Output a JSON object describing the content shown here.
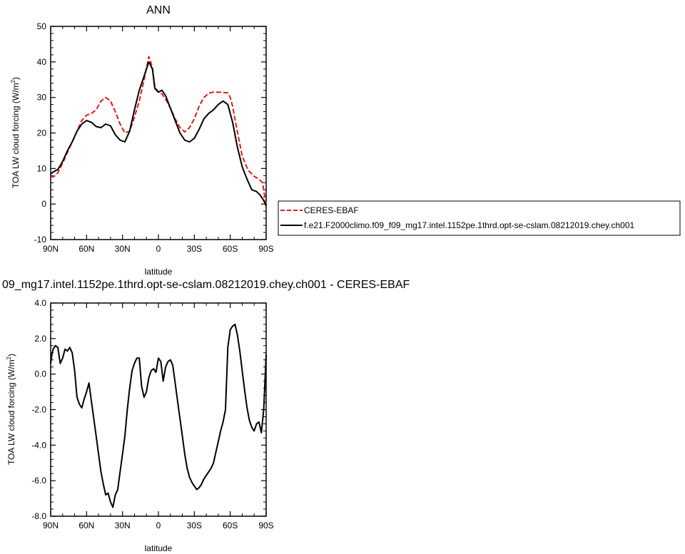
{
  "chart_data": [
    {
      "type": "line",
      "title": "ANN",
      "xlabel": "latitude",
      "ylabel": "TOA LW cloud forcing (W/m",
      "ylabel_sup": "2",
      "ylabel_close": ")",
      "xlim": [
        90,
        -90
      ],
      "ylim": [
        -10,
        50
      ],
      "xticks": [
        90,
        60,
        30,
        0,
        -30,
        -60,
        -90
      ],
      "xticklabels": [
        "90N",
        "60N",
        "30N",
        "0",
        "30S",
        "60S",
        "90S"
      ],
      "yticks": [
        -10,
        0,
        10,
        20,
        30,
        40,
        50
      ],
      "yticklabels": [
        "-10",
        "0",
        "10",
        "20",
        "30",
        "40",
        "50"
      ],
      "legend": "right",
      "series": [
        {
          "name": "CERES-EBAF",
          "color": "#e31a1c",
          "dash": "dashed",
          "x": [
            90,
            87,
            84,
            80,
            76,
            72,
            68,
            64,
            60,
            56,
            52,
            48,
            44,
            40,
            36,
            32,
            28,
            24,
            20,
            16,
            12,
            8,
            5,
            3,
            0,
            -3,
            -6,
            -10,
            -14,
            -18,
            -22,
            -26,
            -30,
            -34,
            -38,
            -42,
            -46,
            -50,
            -54,
            -58,
            -60,
            -62,
            -65,
            -70,
            -75,
            -80,
            -84,
            -87,
            -90
          ],
          "y": [
            7.5,
            7.8,
            8.8,
            11.5,
            14.5,
            17.5,
            20.5,
            23.5,
            25.0,
            25.5,
            26.5,
            29.0,
            30.0,
            29.0,
            26.0,
            22.5,
            20.0,
            20.5,
            24.5,
            29.0,
            35.0,
            41.5,
            38.5,
            33.0,
            31.5,
            31.0,
            29.5,
            27.0,
            24.0,
            21.5,
            20.3,
            21.5,
            24.0,
            27.5,
            30.0,
            31.2,
            31.5,
            31.5,
            31.4,
            31.3,
            30.0,
            27.5,
            22.0,
            13.5,
            9.5,
            7.8,
            7.0,
            6.0,
            -0.5
          ]
        },
        {
          "name": "f.e21.F2000climo.f09_f09_mg17.intel.1152pe.1thrd.opt-se-cslam.08212019.chey.ch001",
          "color": "#000000",
          "dash": "solid",
          "x": [
            90,
            87,
            84,
            80,
            76,
            72,
            68,
            64,
            60,
            56,
            52,
            48,
            44,
            40,
            36,
            32,
            28,
            24,
            20,
            16,
            12,
            8,
            5,
            3,
            0,
            -3,
            -6,
            -10,
            -14,
            -18,
            -22,
            -26,
            -30,
            -34,
            -38,
            -42,
            -46,
            -50,
            -54,
            -58,
            -62,
            -66,
            -70,
            -74,
            -78,
            -82,
            -85,
            -87,
            -89,
            -90
          ],
          "y": [
            8.5,
            9.2,
            9.7,
            12.0,
            15.0,
            17.5,
            20.5,
            22.5,
            23.5,
            23.0,
            21.8,
            21.5,
            22.5,
            22.0,
            19.5,
            18.0,
            17.5,
            20.5,
            26.5,
            32.0,
            36.0,
            40.0,
            38.0,
            32.5,
            31.5,
            32.0,
            30.5,
            27.0,
            23.5,
            20.0,
            18.0,
            17.5,
            18.5,
            21.0,
            24.0,
            25.5,
            26.5,
            28.0,
            29.0,
            28.0,
            23.0,
            16.0,
            10.5,
            7.0,
            4.0,
            3.5,
            2.5,
            1.5,
            0.3,
            -0.5
          ]
        }
      ]
    },
    {
      "type": "line",
      "title": "09_mg17.intel.1152pe.1thrd.opt-se-cslam.08212019.chey.ch001 - CERES-EBAF",
      "xlabel": "latitude",
      "ylabel": "TOA LW cloud forcing (W/m",
      "ylabel_sup": "2",
      "ylabel_close": ")",
      "xlim": [
        90,
        -90
      ],
      "ylim": [
        -8,
        4
      ],
      "xticks": [
        90,
        60,
        30,
        0,
        -30,
        -60,
        -90
      ],
      "xticklabels": [
        "90N",
        "60N",
        "30N",
        "0",
        "30S",
        "60S",
        "90S"
      ],
      "yticks": [
        -8,
        -6,
        -4,
        -2,
        0,
        2,
        4
      ],
      "yticklabels": [
        "-8.0",
        "-6.0",
        "-4.0",
        "-2.0",
        "0.0",
        "2.0",
        "4.0"
      ],
      "series": [
        {
          "color": "#000000",
          "dash": "solid",
          "x": [
            90,
            89,
            88,
            86,
            84,
            82,
            80,
            78,
            76,
            74,
            72,
            70,
            68,
            66,
            64,
            62,
            60,
            58,
            56,
            54,
            52,
            50,
            48,
            46,
            44,
            42,
            40,
            38,
            36,
            34,
            32,
            30,
            28,
            26,
            24,
            22,
            20,
            18,
            16,
            14,
            12,
            10,
            8,
            6,
            4,
            2,
            0,
            -2,
            -4,
            -6,
            -8,
            -10,
            -12,
            -14,
            -16,
            -18,
            -20,
            -22,
            -24,
            -26,
            -28,
            -30,
            -32,
            -34,
            -36,
            -38,
            -40,
            -42,
            -44,
            -46,
            -48,
            -50,
            -52,
            -54,
            -56,
            -58,
            -60,
            -62,
            -64,
            -66,
            -68,
            -70,
            -72,
            -74,
            -76,
            -78,
            -80,
            -82,
            -84,
            -86,
            -88,
            -90
          ],
          "y": [
            0.6,
            1.1,
            1.4,
            1.6,
            1.5,
            0.6,
            0.9,
            1.4,
            1.3,
            1.5,
            1.2,
            0.2,
            -1.3,
            -1.7,
            -1.9,
            -1.4,
            -1.0,
            -0.5,
            -1.5,
            -2.5,
            -3.5,
            -4.5,
            -5.5,
            -6.2,
            -6.8,
            -6.7,
            -7.2,
            -7.5,
            -6.8,
            -6.5,
            -5.5,
            -4.5,
            -3.5,
            -2.0,
            -0.8,
            0.2,
            0.6,
            0.9,
            0.9,
            -0.7,
            -1.3,
            -1.0,
            -0.2,
            0.2,
            0.3,
            0.1,
            0.9,
            0.7,
            -0.4,
            0.4,
            0.7,
            0.8,
            0.5,
            -0.5,
            -1.5,
            -2.5,
            -3.5,
            -4.5,
            -5.3,
            -5.8,
            -6.1,
            -6.3,
            -6.5,
            -6.4,
            -6.2,
            -5.9,
            -5.7,
            -5.5,
            -5.3,
            -5.0,
            -4.4,
            -3.8,
            -3.2,
            -2.7,
            -2.0,
            1.5,
            2.5,
            2.7,
            2.8,
            2.2,
            1.3,
            0.2,
            -0.9,
            -1.9,
            -2.6,
            -3.0,
            -3.2,
            -2.8,
            -2.7,
            -3.3,
            -2.0,
            1.1
          ]
        }
      ]
    }
  ]
}
